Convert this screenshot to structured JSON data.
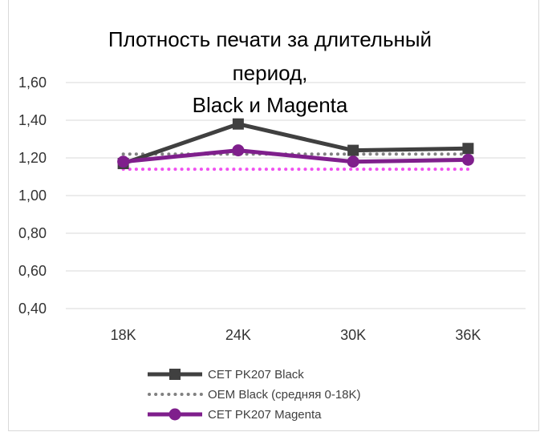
{
  "chart_data": {
    "type": "line",
    "title_lines": [
      "Плотность печати за длительный",
      "период,",
      "Black и Magenta"
    ],
    "categories": [
      "18K",
      "24K",
      "30K",
      "36K"
    ],
    "y_tick_labels": [
      "1,60",
      "1,40",
      "1,20",
      "1,00",
      "0,80",
      "0,60",
      "0,40"
    ],
    "ylim": [
      0.4,
      1.6
    ],
    "grid": true,
    "legend_position": "bottom",
    "series": [
      {
        "name": "CET PK207 Black",
        "values": [
          1.17,
          1.38,
          1.24,
          1.25
        ],
        "color": "#404040",
        "marker": "square",
        "style": "solid"
      },
      {
        "name": "OEM Black (средняя 0-18K)",
        "values": [
          1.22,
          1.22,
          1.22,
          1.22
        ],
        "color": "#808080",
        "marker": "none",
        "style": "dotted"
      },
      {
        "name": "CET PK207 Magenta",
        "values": [
          1.18,
          1.24,
          1.18,
          1.19
        ],
        "color": "#7f1f8c",
        "marker": "circle",
        "style": "solid"
      },
      {
        "name": "",
        "values": [
          1.14,
          1.14,
          1.14,
          1.14
        ],
        "color": "#f051f0",
        "marker": "none",
        "style": "dotted",
        "in_legend": false
      }
    ]
  }
}
